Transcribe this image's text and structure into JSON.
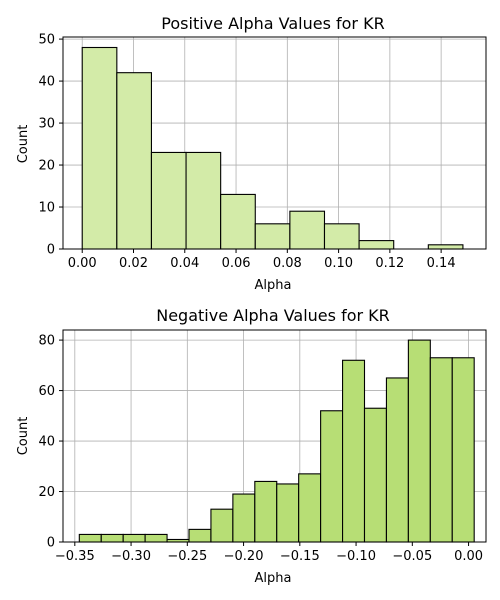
{
  "chart_data": [
    {
      "type": "bar",
      "title": "Positive Alpha Values for KR",
      "xlabel": "Alpha",
      "ylabel": "Count",
      "xlim": [
        -0.0075,
        0.1575
      ],
      "ylim": [
        0,
        50.5
      ],
      "grid": true,
      "bar_color": "#d3eba8",
      "edge_color": "#000000",
      "x_ticks": [
        {
          "value": 0.0,
          "label": "0.00"
        },
        {
          "value": 0.02,
          "label": "0.02"
        },
        {
          "value": 0.04,
          "label": "0.04"
        },
        {
          "value": 0.06,
          "label": "0.06"
        },
        {
          "value": 0.08,
          "label": "0.08"
        },
        {
          "value": 0.1,
          "label": "0.10"
        },
        {
          "value": 0.12,
          "label": "0.12"
        },
        {
          "value": 0.14,
          "label": "0.14"
        }
      ],
      "y_ticks": [
        {
          "value": 0,
          "label": "0"
        },
        {
          "value": 10,
          "label": "10"
        },
        {
          "value": 20,
          "label": "20"
        },
        {
          "value": 30,
          "label": "30"
        },
        {
          "value": 40,
          "label": "40"
        },
        {
          "value": 50,
          "label": "50"
        }
      ],
      "bins": [
        {
          "start": 0.0,
          "end": 0.0135,
          "count": 48
        },
        {
          "start": 0.0135,
          "end": 0.027,
          "count": 42
        },
        {
          "start": 0.027,
          "end": 0.0405,
          "count": 23
        },
        {
          "start": 0.0405,
          "end": 0.054,
          "count": 23
        },
        {
          "start": 0.054,
          "end": 0.0675,
          "count": 13
        },
        {
          "start": 0.0675,
          "end": 0.081,
          "count": 6
        },
        {
          "start": 0.081,
          "end": 0.0945,
          "count": 9
        },
        {
          "start": 0.0945,
          "end": 0.108,
          "count": 6
        },
        {
          "start": 0.108,
          "end": 0.1215,
          "count": 2
        },
        {
          "start": 0.1215,
          "end": 0.135,
          "count": 0
        },
        {
          "start": 0.135,
          "end": 0.1485,
          "count": 1
        }
      ]
    },
    {
      "type": "bar",
      "title": "Negative Alpha Values for KR",
      "xlabel": "Alpha",
      "ylabel": "Count",
      "xlim": [
        -0.3605,
        0.0155
      ],
      "ylim": [
        0,
        84
      ],
      "grid": true,
      "bar_color": "#b7de75",
      "edge_color": "#000000",
      "x_ticks": [
        {
          "value": -0.35,
          "label": "−0.35"
        },
        {
          "value": -0.3,
          "label": "−0.30"
        },
        {
          "value": -0.25,
          "label": "−0.25"
        },
        {
          "value": -0.2,
          "label": "−0.20"
        },
        {
          "value": -0.15,
          "label": "−0.15"
        },
        {
          "value": -0.1,
          "label": "−0.10"
        },
        {
          "value": -0.05,
          "label": "−0.05"
        },
        {
          "value": 0.0,
          "label": "0.00"
        }
      ],
      "y_ticks": [
        {
          "value": 0,
          "label": "0"
        },
        {
          "value": 20,
          "label": "20"
        },
        {
          "value": 40,
          "label": "40"
        },
        {
          "value": 60,
          "label": "60"
        },
        {
          "value": 80,
          "label": "80"
        }
      ],
      "bins": [
        {
          "start": -0.346,
          "end": -0.3265,
          "count": 3
        },
        {
          "start": -0.3265,
          "end": -0.307,
          "count": 3
        },
        {
          "start": -0.307,
          "end": -0.2875,
          "count": 3
        },
        {
          "start": -0.2875,
          "end": -0.268,
          "count": 3
        },
        {
          "start": -0.268,
          "end": -0.2485,
          "count": 1
        },
        {
          "start": -0.2485,
          "end": -0.229,
          "count": 5
        },
        {
          "start": -0.229,
          "end": -0.2095,
          "count": 13
        },
        {
          "start": -0.2095,
          "end": -0.19,
          "count": 19
        },
        {
          "start": -0.19,
          "end": -0.1705,
          "count": 24
        },
        {
          "start": -0.1705,
          "end": -0.151,
          "count": 23
        },
        {
          "start": -0.151,
          "end": -0.1315,
          "count": 27
        },
        {
          "start": -0.1315,
          "end": -0.112,
          "count": 52
        },
        {
          "start": -0.112,
          "end": -0.0925,
          "count": 72
        },
        {
          "start": -0.0925,
          "end": -0.073,
          "count": 53
        },
        {
          "start": -0.073,
          "end": -0.0535,
          "count": 65
        },
        {
          "start": -0.0535,
          "end": -0.034,
          "count": 80
        },
        {
          "start": -0.034,
          "end": -0.0145,
          "count": 73
        },
        {
          "start": -0.0145,
          "end": 0.005,
          "count": 73
        }
      ]
    }
  ]
}
